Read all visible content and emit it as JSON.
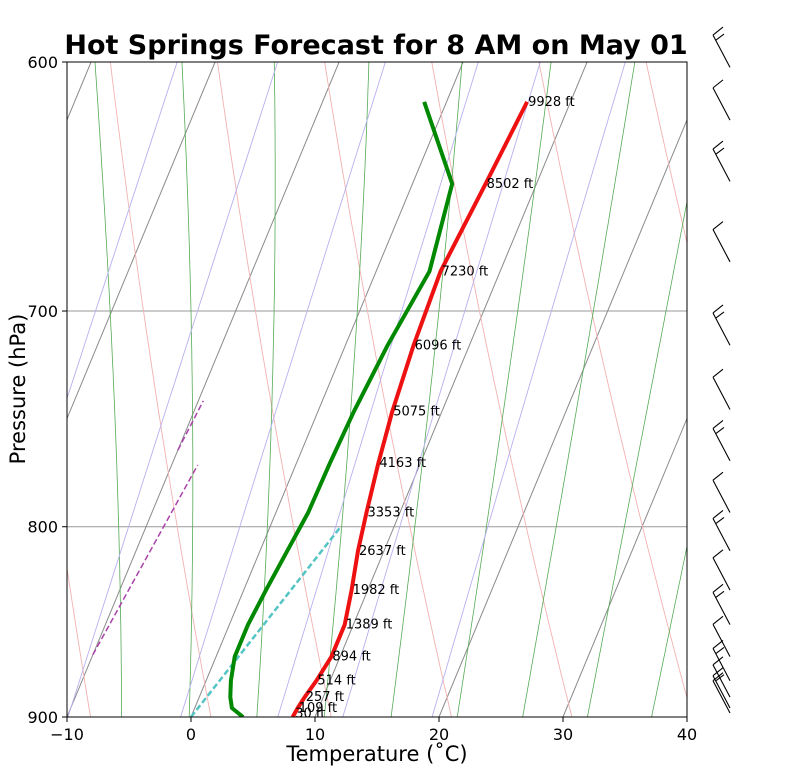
{
  "chart_data": {
    "type": "line",
    "title": "Hot Springs Forecast for 8 AM on May 01",
    "xlabel": "Temperature (˚C)",
    "ylabel": "Pressure (hPa)",
    "xlim": [
      -10,
      40
    ],
    "ylim": [
      900,
      600
    ],
    "y_scale": "log",
    "x_ticks": [
      "−10",
      "0",
      "10",
      "20",
      "30",
      "40"
    ],
    "y_ticks": [
      "600",
      "700",
      "800",
      "900"
    ],
    "grid": true,
    "skew": true,
    "series": [
      {
        "color": "#ee1111",
        "points": [
          {
            "p": 900,
            "t": 8.2
          },
          {
            "p": 895,
            "t": 8.3
          },
          {
            "p": 889,
            "t": 8.5
          },
          {
            "p": 880,
            "t": 8.9
          },
          {
            "p": 867,
            "t": 9.3
          },
          {
            "p": 850,
            "t": 9.3
          },
          {
            "p": 832,
            "t": 8.7
          },
          {
            "p": 812,
            "t": 7.9
          },
          {
            "p": 793,
            "t": 7.3
          },
          {
            "p": 769,
            "t": 6.6
          },
          {
            "p": 745,
            "t": 6.0
          },
          {
            "p": 715,
            "t": 5.5
          },
          {
            "p": 683,
            "t": 5.2
          },
          {
            "p": 647,
            "t": 5.9
          },
          {
            "p": 615,
            "t": 6.5
          }
        ]
      },
      {
        "color": "#008800",
        "points": [
          {
            "p": 900,
            "t": 4.2
          },
          {
            "p": 895,
            "t": 3.0
          },
          {
            "p": 889,
            "t": 2.5
          },
          {
            "p": 880,
            "t": 2.0
          },
          {
            "p": 867,
            "t": 1.5
          },
          {
            "p": 850,
            "t": 1.5
          },
          {
            "p": 832,
            "t": 1.8
          },
          {
            "p": 812,
            "t": 2.2
          },
          {
            "p": 793,
            "t": 2.6
          },
          {
            "p": 769,
            "t": 2.7
          },
          {
            "p": 745,
            "t": 2.9
          },
          {
            "p": 715,
            "t": 3.4
          },
          {
            "p": 683,
            "t": 4.3
          },
          {
            "p": 647,
            "t": 3.2
          },
          {
            "p": 615,
            "t": -1.8
          }
        ]
      }
    ],
    "height_labels": [
      {
        "p": 615,
        "t": 6.5,
        "text": "9928 ft"
      },
      {
        "p": 647,
        "t": 5.9,
        "text": "8502 ft"
      },
      {
        "p": 683,
        "t": 5.2,
        "text": "7230 ft"
      },
      {
        "p": 715,
        "t": 5.5,
        "text": "6096 ft"
      },
      {
        "p": 745,
        "t": 6.0,
        "text": "5075 ft"
      },
      {
        "p": 769,
        "t": 6.6,
        "text": "4163 ft"
      },
      {
        "p": 793,
        "t": 7.3,
        "text": "3353 ft"
      },
      {
        "p": 812,
        "t": 7.9,
        "text": "2637 ft"
      },
      {
        "p": 832,
        "t": 8.7,
        "text": "1982 ft"
      },
      {
        "p": 850,
        "t": 9.3,
        "text": "1389 ft"
      },
      {
        "p": 867,
        "t": 9.3,
        "text": "894 ft"
      },
      {
        "p": 880,
        "t": 8.9,
        "text": "514 ft"
      },
      {
        "p": 889,
        "t": 8.5,
        "text": "257 ft"
      },
      {
        "p": 895,
        "t": 8.3,
        "text": "109 ft"
      },
      {
        "p": 898,
        "t": 8.2,
        "text": "30 ft"
      }
    ],
    "barb_pressures": [
      602,
      622,
      646,
      679,
      715,
      744,
      768,
      793,
      812,
      832,
      850,
      867,
      880,
      889,
      895,
      900
    ]
  }
}
